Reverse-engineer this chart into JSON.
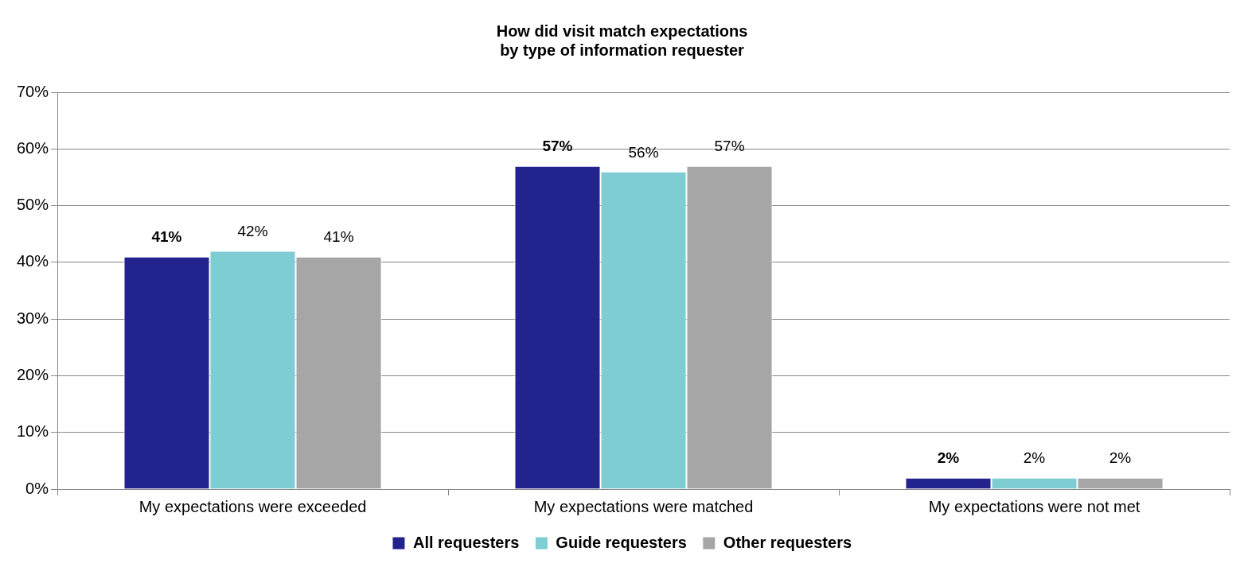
{
  "chart_data": {
    "type": "bar",
    "title": "How did visit match expectations\nby type of information requester",
    "categories": [
      "My expectations were exceeded",
      "My expectations were matched",
      "My expectations were not met"
    ],
    "series": [
      {
        "name": "All requesters",
        "color": "#23238e",
        "values": [
          41,
          57,
          2
        ],
        "value_labels": [
          "41%",
          "57%",
          "2%"
        ]
      },
      {
        "name": "Guide requesters",
        "color": "#7ecdd3",
        "values": [
          42,
          56,
          2
        ],
        "value_labels": [
          "42%",
          "56%",
          "2%"
        ]
      },
      {
        "name": "Other requesters",
        "color": "#a6a6a6",
        "values": [
          41,
          57,
          2
        ],
        "value_labels": [
          "41%",
          "57%",
          "2%"
        ]
      }
    ],
    "ylim": [
      0,
      70
    ],
    "yticks": [
      {
        "value": 0,
        "label": "0%"
      },
      {
        "value": 10,
        "label": "10%"
      },
      {
        "value": 20,
        "label": "20%"
      },
      {
        "value": 30,
        "label": "30%"
      },
      {
        "value": 40,
        "label": "40%"
      },
      {
        "value": 50,
        "label": "50%"
      },
      {
        "value": 60,
        "label": "60%"
      },
      {
        "value": 70,
        "label": "70%"
      }
    ],
    "grid": "y",
    "legend": "bottom"
  }
}
